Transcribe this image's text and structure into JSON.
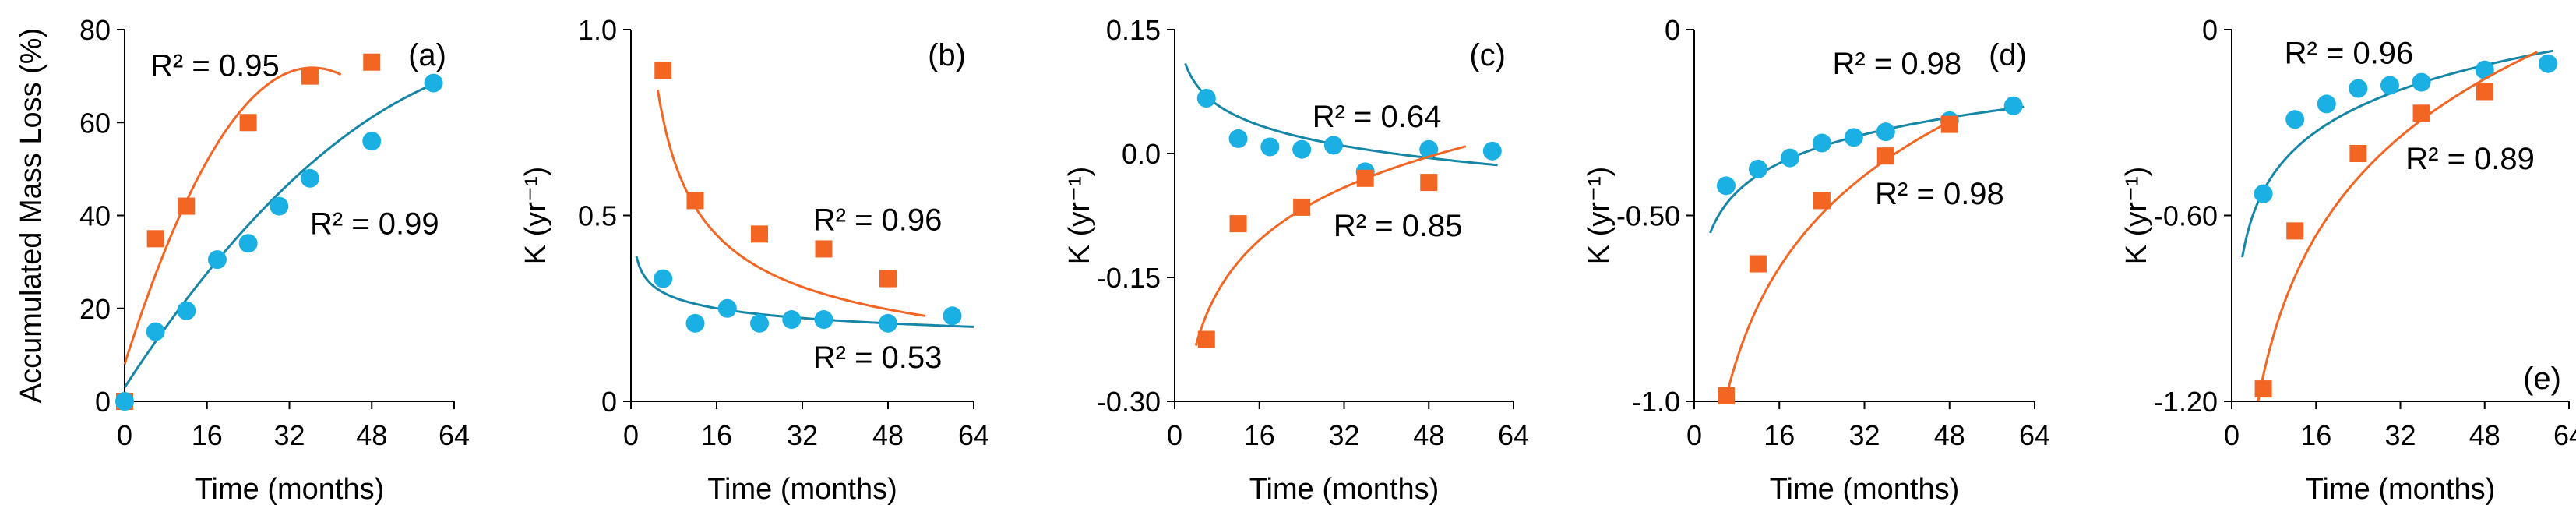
{
  "chart_data": [
    {
      "panel": "a",
      "type": "scatter",
      "ylabel": "Accumulated Mass Loss (%)",
      "xlabel": "Time (months)",
      "xlim": [
        0,
        64
      ],
      "ylim": [
        0,
        80
      ],
      "xticks": [
        0,
        16,
        32,
        48,
        64
      ],
      "yticks": [
        0,
        20,
        40,
        60,
        80
      ],
      "ytick_labels": [
        "0",
        "20",
        "40",
        "60",
        "80"
      ],
      "letter_pos": "top-right",
      "series": [
        {
          "name": "orange",
          "color": "#f26522",
          "marker": "square",
          "x": [
            0,
            6,
            12,
            24,
            36,
            48
          ],
          "y": [
            0,
            35,
            42,
            60,
            70,
            73
          ],
          "fit": {
            "type": "quad",
            "a": 8,
            "b": 3.5,
            "c": -0.048,
            "x0": 0,
            "x1": 42
          },
          "r2": "R² = 0.95",
          "r2_at": [
            5,
            70
          ]
        },
        {
          "name": "blue",
          "color": "#1ab0e3",
          "marker": "circle",
          "line_color": "#1686a6",
          "x": [
            0,
            6,
            12,
            18,
            24,
            30,
            36,
            48,
            60
          ],
          "y": [
            0,
            15,
            19.5,
            30.5,
            34,
            42,
            48,
            56,
            68.5
          ],
          "fit": {
            "type": "quad",
            "a": 3,
            "b": 1.7,
            "c": -0.0102,
            "x0": 0,
            "x1": 61
          },
          "r2": "R² = 0.99",
          "r2_at": [
            36,
            36
          ]
        }
      ]
    },
    {
      "panel": "b",
      "type": "scatter",
      "ylabel": "K (yr⁻¹)",
      "xlabel": "Time (months)",
      "xlim": [
        0,
        64
      ],
      "ylim": [
        0,
        1.0
      ],
      "xticks": [
        0,
        16,
        32,
        48,
        64
      ],
      "yticks": [
        0,
        0.5,
        1.0
      ],
      "ytick_labels": [
        "0",
        "0.5",
        "1.0"
      ],
      "letter_pos": "top-right",
      "series": [
        {
          "name": "orange",
          "color": "#f26522",
          "marker": "square",
          "x": [
            6,
            12,
            24,
            36,
            48
          ],
          "y": [
            0.89,
            0.54,
            0.45,
            0.41,
            0.33
          ],
          "fit": {
            "type": "pow",
            "a": 2.0,
            "b": -0.54,
            "x0": 5,
            "x1": 55
          },
          "r2": "R² = 0.96",
          "r2_at": [
            34,
            0.46
          ]
        },
        {
          "name": "blue",
          "color": "#1ab0e3",
          "marker": "circle",
          "line_color": "#1686a6",
          "x": [
            6,
            12,
            18,
            24,
            30,
            36,
            48,
            60
          ],
          "y": [
            0.33,
            0.21,
            0.25,
            0.21,
            0.22,
            0.22,
            0.21,
            0.23
          ],
          "fit": {
            "type": "pow",
            "a": 0.39,
            "b": -0.16,
            "x0": 1,
            "x1": 64
          },
          "r2": "R² = 0.53",
          "r2_at": [
            34,
            0.09
          ]
        }
      ]
    },
    {
      "panel": "c",
      "type": "scatter",
      "ylabel": "K (yr⁻¹)",
      "xlabel": "Time (months)",
      "xlim": [
        0,
        64
      ],
      "ylim": [
        -0.3,
        0.15
      ],
      "xticks": [
        0,
        16,
        32,
        48,
        64
      ],
      "yticks": [
        -0.3,
        -0.15,
        0.0,
        0.15
      ],
      "ytick_labels": [
        "-0.30",
        "-0.15",
        "0.0",
        "0.15"
      ],
      "letter_pos": "top-right",
      "series": [
        {
          "name": "blue",
          "color": "#1ab0e3",
          "marker": "circle",
          "line_color": "#1686a6",
          "x": [
            6,
            12,
            18,
            24,
            30,
            36,
            48,
            60
          ],
          "y": [
            0.067,
            0.018,
            0.008,
            0.005,
            0.01,
            -0.022,
            0.005,
            0.003
          ],
          "fit": {
            "type": "log",
            "a": 0.134,
            "b": -0.036,
            "x0": 2,
            "x1": 61
          },
          "r2": "R² = 0.64",
          "r2_at": [
            26,
            0.032
          ]
        },
        {
          "name": "orange",
          "color": "#f26522",
          "marker": "square",
          "x": [
            6,
            12,
            24,
            36,
            48
          ],
          "y": [
            -0.225,
            -0.085,
            -0.065,
            -0.03,
            -0.035
          ],
          "fit": {
            "type": "log",
            "a": -0.36,
            "b": 0.092,
            "x0": 4,
            "x1": 55
          },
          "r2": "R² = 0.85",
          "r2_at": [
            30,
            -0.1
          ]
        }
      ]
    },
    {
      "panel": "d",
      "type": "scatter",
      "ylabel": "K (yr⁻¹)",
      "xlabel": "Time (months)",
      "xlim": [
        0,
        64
      ],
      "ylim": [
        -1.0,
        0
      ],
      "xticks": [
        0,
        16,
        32,
        48,
        64
      ],
      "yticks": [
        -1.0,
        -0.5,
        0
      ],
      "ytick_labels": [
        "-1.0",
        "-0.50",
        "0"
      ],
      "letter_pos": "top-right",
      "series": [
        {
          "name": "blue",
          "color": "#1ab0e3",
          "marker": "circle",
          "line_color": "#1686a6",
          "x": [
            6,
            12,
            18,
            24,
            30,
            36,
            48,
            60
          ],
          "y": [
            -0.42,
            -0.375,
            -0.345,
            -0.305,
            -0.29,
            -0.275,
            -0.245,
            -0.205
          ],
          "fit": {
            "type": "log",
            "a": -0.67,
            "b": 0.112,
            "x0": 3,
            "x1": 62
          },
          "r2": "R² = 0.98",
          "r2_at": [
            26,
            -0.12
          ]
        },
        {
          "name": "orange",
          "color": "#f26522",
          "marker": "square",
          "x": [
            6,
            12,
            24,
            36,
            48
          ],
          "y": [
            -0.985,
            -0.63,
            -0.46,
            -0.34,
            -0.255
          ],
          "fit": {
            "type": "log",
            "a": -1.63,
            "b": 0.357,
            "x0": 6,
            "x1": 48
          },
          "r2": "R² = 0.98",
          "r2_at": [
            34,
            -0.47
          ]
        }
      ]
    },
    {
      "panel": "e",
      "type": "scatter",
      "ylabel": "K (yr⁻¹)",
      "xlabel": "Time (months)",
      "xlim": [
        0,
        64
      ],
      "ylim": [
        -1.2,
        0
      ],
      "xticks": [
        0,
        16,
        32,
        48,
        64
      ],
      "yticks": [
        -1.2,
        -0.6,
        0
      ],
      "ytick_labels": [
        "-1.20",
        "-0.60",
        "0"
      ],
      "letter_pos": "bottom-right",
      "series": [
        {
          "name": "blue",
          "color": "#1ab0e3",
          "marker": "circle",
          "line_color": "#1686a6",
          "x": [
            6,
            12,
            18,
            24,
            30,
            36,
            48,
            60
          ],
          "y": [
            -0.53,
            -0.29,
            -0.24,
            -0.19,
            -0.18,
            -0.17,
            -0.13,
            -0.11
          ],
          "fit": {
            "type": "log",
            "a": -0.87,
            "b": 0.195,
            "x0": 2,
            "x1": 61
          },
          "r2": "R² = 0.96",
          "r2_at": [
            10,
            -0.11
          ]
        },
        {
          "name": "orange",
          "color": "#f26522",
          "marker": "square",
          "x": [
            6,
            12,
            24,
            36,
            48
          ],
          "y": [
            -1.16,
            -0.65,
            -0.4,
            -0.27,
            -0.2
          ],
          "fit": {
            "type": "log",
            "a": -1.94,
            "b": 0.46,
            "x0": 5,
            "x1": 58
          },
          "r2": "R² = 0.89",
          "r2_at": [
            33,
            -0.45
          ]
        }
      ]
    }
  ]
}
